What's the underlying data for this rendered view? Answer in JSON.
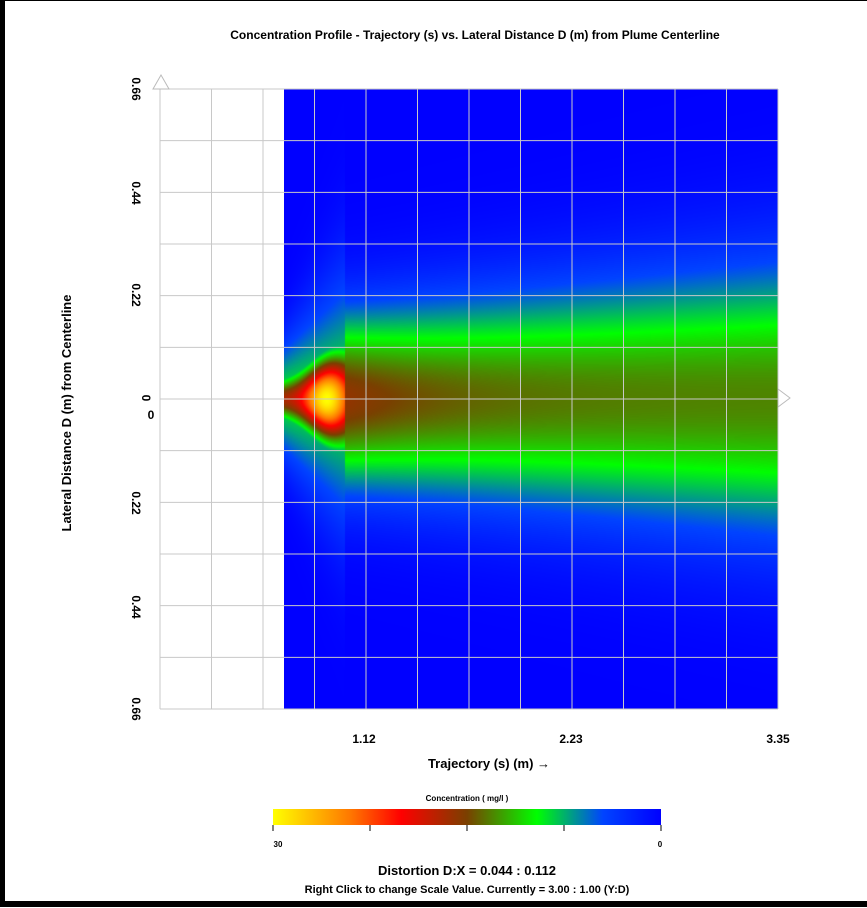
{
  "chart_data": {
    "type": "heatmap",
    "title": "Concentration Profile - Trajectory (s) vs. Lateral Distance D (m) from Plume Centerline",
    "xlabel": "Trajectory (s) (m) →",
    "ylabel": "Lateral Distance D (m)  from Centerline",
    "x_ticks": [
      "1.12",
      "2.23",
      "3.35"
    ],
    "y_ticks_upper": [
      "0.66",
      "0.44",
      "0.22"
    ],
    "y_center_labels": [
      "0",
      "0"
    ],
    "y_ticks_lower": [
      "0.22",
      "0.44",
      "0.66"
    ],
    "xlim": [
      0,
      3.35
    ],
    "ylim": [
      -0.66,
      0.66
    ],
    "data_extent": {
      "x_start": 0.67,
      "x_end": 3.35,
      "y_min": -0.66,
      "y_max": 0.66
    },
    "grid": true,
    "colorbar": {
      "label": "Concentration ( mg/l )",
      "max_label": "30",
      "min_label": "0",
      "colors": [
        "#ffff00",
        "#ff7700",
        "#ff0000",
        "#7a4000",
        "#00ff00",
        "#0044ff",
        "#0000ff"
      ]
    },
    "source_peak": {
      "x": 0.9,
      "y": 0,
      "value": 30
    },
    "near_field_value": 20,
    "far_field_centerline": 13
  },
  "footer": {
    "distortion": "Distortion D:X = 0.044 : 0.112",
    "scale_note": "Right Click to change Scale Value. Currently = 3.00 : 1.00 (Y:D)"
  }
}
